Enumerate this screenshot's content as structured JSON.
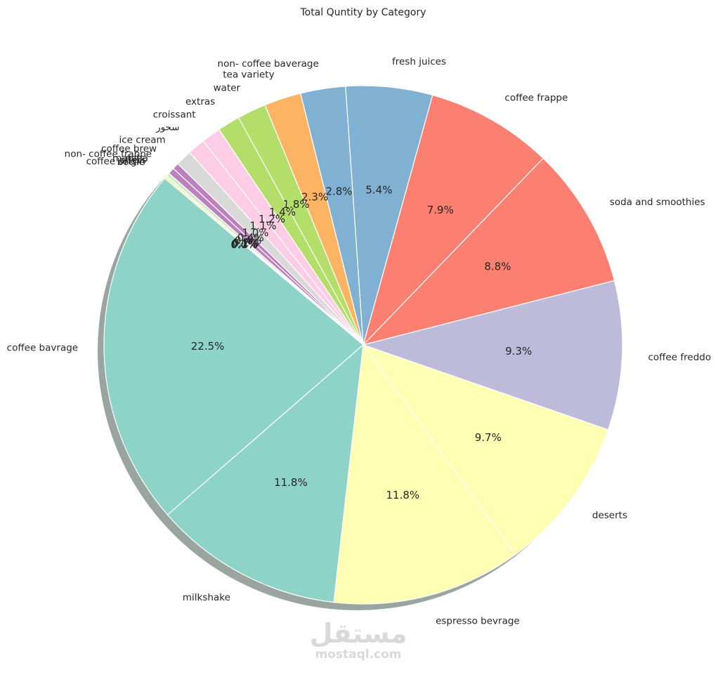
{
  "chart_data": {
    "type": "pie",
    "title": "Total Quntity by Category",
    "shadow": true,
    "start_angle_deg": 140,
    "counterclockwise": true,
    "slices": [
      {
        "label": "coffee bavrage",
        "value": 22.5,
        "pct_label": "22.5%",
        "color": "#8dd3c7"
      },
      {
        "label": "milkshake",
        "value": 11.8,
        "pct_label": "11.8%",
        "color": "#8dd3c7"
      },
      {
        "label": "espresso bevrage",
        "value": 11.8,
        "pct_label": "11.8%",
        "color": "#ffffb3"
      },
      {
        "label": "deserts",
        "value": 9.7,
        "pct_label": "9.7%",
        "color": "#ffffb3"
      },
      {
        "label": "coffee freddo",
        "value": 9.3,
        "pct_label": "9.3%",
        "color": "#bebada"
      },
      {
        "label": "soda and smoothies",
        "value": 8.8,
        "pct_label": "8.8%",
        "color": "#fb8072"
      },
      {
        "label": "coffee frappe",
        "value": 7.9,
        "pct_label": "7.9%",
        "color": "#fb8072"
      },
      {
        "label": "fresh juices",
        "value": 5.4,
        "pct_label": "5.4%",
        "color": "#80b1d3"
      },
      {
        "label": "non- coffee baverage",
        "value": 2.8,
        "pct_label": "2.8%",
        "color": "#80b1d3"
      },
      {
        "label": "tea variety",
        "value": 2.3,
        "pct_label": "2.3%",
        "color": "#fdb462"
      },
      {
        "label": "water",
        "value": 1.8,
        "pct_label": "1.8%",
        "color": "#b3de69"
      },
      {
        "label": "extras",
        "value": 1.4,
        "pct_label": "1.4%",
        "color": "#b3de69"
      },
      {
        "label": "croissant",
        "value": 1.2,
        "pct_label": "1.2%",
        "color": "#fccde5"
      },
      {
        "label": "سحور",
        "value": 1.1,
        "pct_label": "1.1%",
        "color": "#fccde5"
      },
      {
        "label": "ice cream",
        "value": 1.0,
        "pct_label": "1.0%",
        "color": "#d9d9d9"
      },
      {
        "label": "coffee brew",
        "value": 0.4,
        "pct_label": "0.4%",
        "color": "#bc80bd"
      },
      {
        "label": "non- coffee frappe",
        "value": 0.4,
        "pct_label": "0.4%",
        "color": "#bc80bd"
      },
      {
        "label": "matcha",
        "value": 0.2,
        "pct_label": "0.2%",
        "color": "#ccebc5"
      },
      {
        "label": "offers",
        "value": 0.1,
        "pct_label": "0.1%",
        "color": "#ccebc5"
      },
      {
        "label": "coffee origin",
        "value": 0.1,
        "pct_label": "0.1%",
        "color": "#ffed6f"
      },
      {
        "label": "bottle",
        "value": 0.0,
        "pct_label": "0.0%",
        "color": "#ffed6f"
      }
    ]
  },
  "watermark": {
    "logo_text": "مستقل",
    "text": "mostaql.com"
  }
}
